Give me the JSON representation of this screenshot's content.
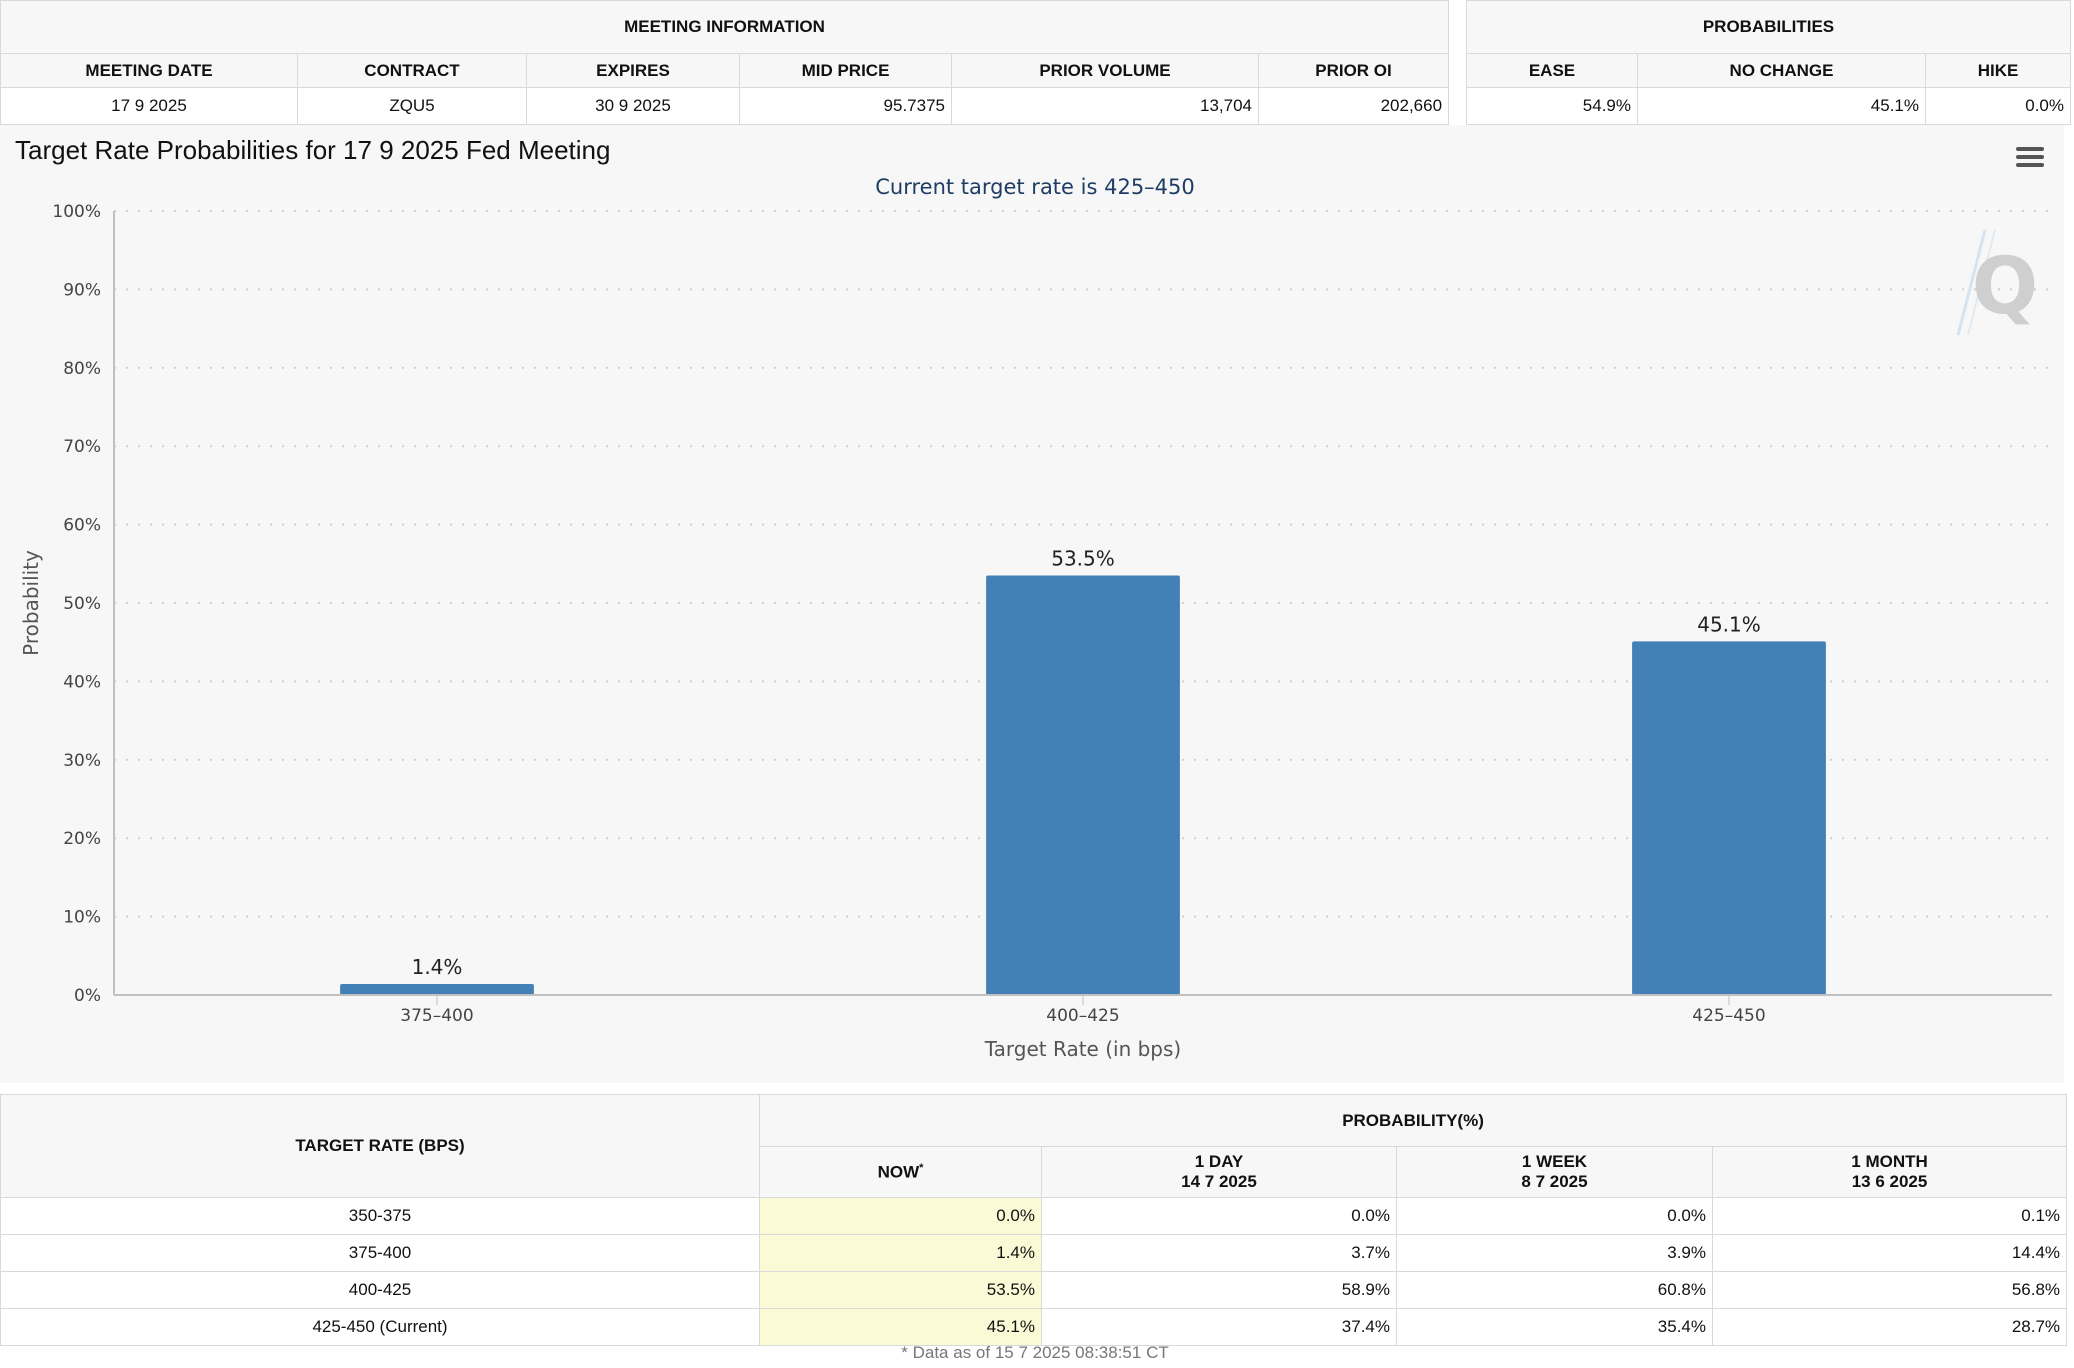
{
  "meeting_info": {
    "title": "MEETING INFORMATION",
    "headers": [
      "MEETING DATE",
      "CONTRACT",
      "EXPIRES",
      "MID PRICE",
      "PRIOR VOLUME",
      "PRIOR OI"
    ],
    "values": [
      "17 9 2025",
      "ZQU5",
      "30 9 2025",
      "95.7375",
      "13,704",
      "202,660"
    ]
  },
  "probabilities": {
    "title": "PROBABILITIES",
    "headers": [
      "EASE",
      "NO CHANGE",
      "HIKE"
    ],
    "values": [
      "54.9%",
      "45.1%",
      "0.0%"
    ]
  },
  "chart": {
    "title": "Target Rate Probabilities for 17 9 2025 Fed Meeting",
    "subtitle": "Current target rate is 425–450",
    "menu_icon": "hamburger-menu-icon",
    "watermark_icon": "q-watermark-icon",
    "bar_color": "#4280b6"
  },
  "chart_data": {
    "type": "bar",
    "categories": [
      "375–400",
      "400–425",
      "425–450"
    ],
    "values": [
      1.4,
      53.5,
      45.1
    ],
    "data_labels": [
      "1.4%",
      "53.5%",
      "45.1%"
    ],
    "xlabel": "Target Rate (in bps)",
    "ylabel": "Probability",
    "ylim": [
      0,
      100
    ],
    "yticks": [
      "0%",
      "10%",
      "20%",
      "30%",
      "40%",
      "50%",
      "60%",
      "70%",
      "80%",
      "90%",
      "100%"
    ],
    "grid": true,
    "legend": "none"
  },
  "bottom_table": {
    "target_header": "TARGET RATE (BPS)",
    "prob_header": "PROBABILITY(%)",
    "now_header": "NOW",
    "now_marker": "*",
    "day_header": "1 DAY",
    "day_date": "14 7 2025",
    "week_header": "1 WEEK",
    "week_date": "8 7 2025",
    "month_header": "1 MONTH",
    "month_date": "13 6 2025",
    "rows": [
      {
        "rate": "350-375",
        "now": "0.0%",
        "day": "0.0%",
        "week": "0.0%",
        "month": "0.1%"
      },
      {
        "rate": "375-400",
        "now": "1.4%",
        "day": "3.7%",
        "week": "3.9%",
        "month": "14.4%"
      },
      {
        "rate": "400-425",
        "now": "53.5%",
        "day": "58.9%",
        "week": "60.8%",
        "month": "56.8%"
      },
      {
        "rate": "425-450 (Current)",
        "now": "45.1%",
        "day": "37.4%",
        "week": "35.4%",
        "month": "28.7%"
      }
    ],
    "footnote": "* Data as of 15 7 2025 08:38:51 CT"
  }
}
